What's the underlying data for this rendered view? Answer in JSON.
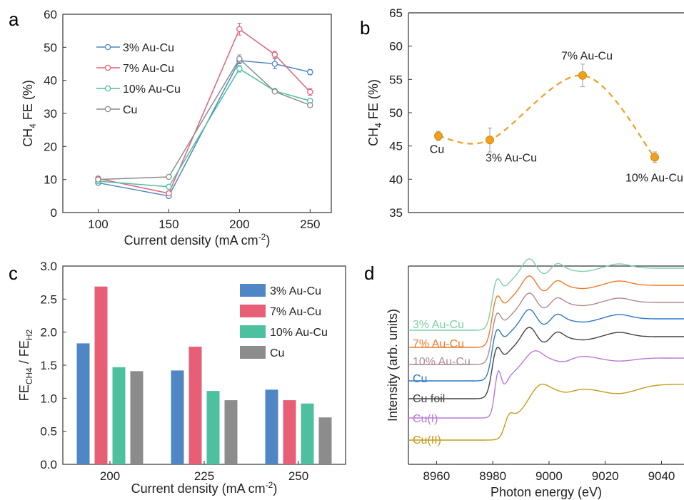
{
  "panel_letters": [
    "a",
    "b",
    "c",
    "d"
  ],
  "colors": {
    "blue": "#4f86c6",
    "red": "#e65f77",
    "green": "#4dc0a0",
    "gray": "#8c8c8c",
    "orange": "#f0a020",
    "d_green": "#7fcfa6",
    "d_orange": "#ee7a2a",
    "d_mauve": "#b08a8e",
    "d_blue": "#2d78c8",
    "d_black": "#444444",
    "d_purple": "#b87ad8",
    "d_gold": "#c79a1a"
  },
  "chart_data": [
    {
      "panel": "a",
      "type": "line",
      "xlabel": "Current density (mA cm⁻²)",
      "xlabel_main": "Current density (mA cm",
      "xlabel_sup": "-2",
      "xlabel_end": ")",
      "ylabel_main": "CH",
      "ylabel_sub": "4",
      "ylabel_end": " FE (%)",
      "xlim": [
        75,
        265
      ],
      "ylim": [
        0,
        60
      ],
      "xticks": [
        100,
        150,
        200,
        250
      ],
      "yticks": [
        0,
        10,
        20,
        30,
        40,
        50,
        60
      ],
      "x": [
        100,
        150,
        200,
        225,
        250
      ],
      "legend_position": "top-left",
      "series": [
        {
          "name": "3% Au-Cu",
          "color": "#4f86c6",
          "values": [
            9.0,
            5.0,
            46.0,
            45.0,
            42.5
          ],
          "errors": [
            0.5,
            0.5,
            1.0,
            1.5,
            0.8
          ]
        },
        {
          "name": "7% Au-Cu",
          "color": "#e65f77",
          "values": [
            10.3,
            5.8,
            55.5,
            47.8,
            36.5
          ],
          "errors": [
            0.5,
            0.5,
            1.8,
            1.0,
            1.0
          ]
        },
        {
          "name": "10% Au-Cu",
          "color": "#4dc0a0",
          "values": [
            9.5,
            7.8,
            43.5,
            36.8,
            33.8
          ],
          "errors": [
            0.5,
            0.5,
            1.0,
            0.5,
            0.6
          ]
        },
        {
          "name": "Cu",
          "color": "#8c8c8c",
          "values": [
            10.0,
            10.8,
            46.5,
            36.6,
            32.5
          ],
          "errors": [
            0.4,
            0.4,
            1.2,
            0.4,
            0.6
          ]
        }
      ]
    },
    {
      "panel": "b",
      "type": "scatter",
      "ylabel_main": "CH",
      "ylabel_sub": "4",
      "ylabel_end": " FE (%)",
      "ylim": [
        35,
        65
      ],
      "yticks": [
        35,
        40,
        45,
        50,
        55,
        60,
        65
      ],
      "categories": [
        "Cu",
        "3% Au-Cu",
        "7% Au-Cu",
        "10% Au-Cu"
      ],
      "values": [
        46.5,
        45.9,
        55.6,
        43.3
      ],
      "errors": [
        0.7,
        1.8,
        1.7,
        0.8
      ],
      "color": "#f0a020"
    },
    {
      "panel": "c",
      "type": "bar",
      "xlabel_main": "Current density (mA cm",
      "xlabel_sup": "-2",
      "xlabel_end": ")",
      "ylabel_p1": "FE",
      "ylabel_s1": "CH4",
      "ylabel_p2": " / FE",
      "ylabel_s2": "H2",
      "categories": [
        "200",
        "225",
        "250"
      ],
      "ylim": [
        0,
        3.0
      ],
      "yticks": [
        "0.0",
        "0.5",
        "1.0",
        "1.5",
        "2.0",
        "2.5",
        "3.0"
      ],
      "legend_position": "top-right",
      "series": [
        {
          "name": "3% Au-Cu",
          "color": "#4f86c6",
          "values": [
            1.83,
            1.42,
            1.13
          ]
        },
        {
          "name": "7% Au-Cu",
          "color": "#e65f77",
          "values": [
            2.69,
            1.78,
            0.97
          ]
        },
        {
          "name": "10% Au-Cu",
          "color": "#4dc0a0",
          "values": [
            1.47,
            1.11,
            0.92
          ]
        },
        {
          "name": "Cu",
          "color": "#8c8c8c",
          "values": [
            1.41,
            0.97,
            0.71
          ]
        }
      ]
    },
    {
      "panel": "d",
      "type": "line",
      "xlabel": "Photon energy (eV)",
      "ylabel": "Intensity (arb. units)",
      "xlim": [
        8950,
        9048
      ],
      "xticks": [
        8960,
        8980,
        9000,
        9020,
        9040
      ],
      "series": [
        {
          "name": "3% Au-Cu",
          "color": "#7fcfa6"
        },
        {
          "name": "7% Au-Cu",
          "color": "#ee7a2a"
        },
        {
          "name": "10% Au-Cu",
          "color": "#b08a8e"
        },
        {
          "name": "Cu",
          "color": "#2d78c8"
        },
        {
          "name": "Cu foil",
          "color": "#444444"
        },
        {
          "name": "Cu(I)",
          "color": "#b87ad8"
        },
        {
          "name": "Cu(II)",
          "color": "#c79a1a"
        }
      ]
    }
  ]
}
